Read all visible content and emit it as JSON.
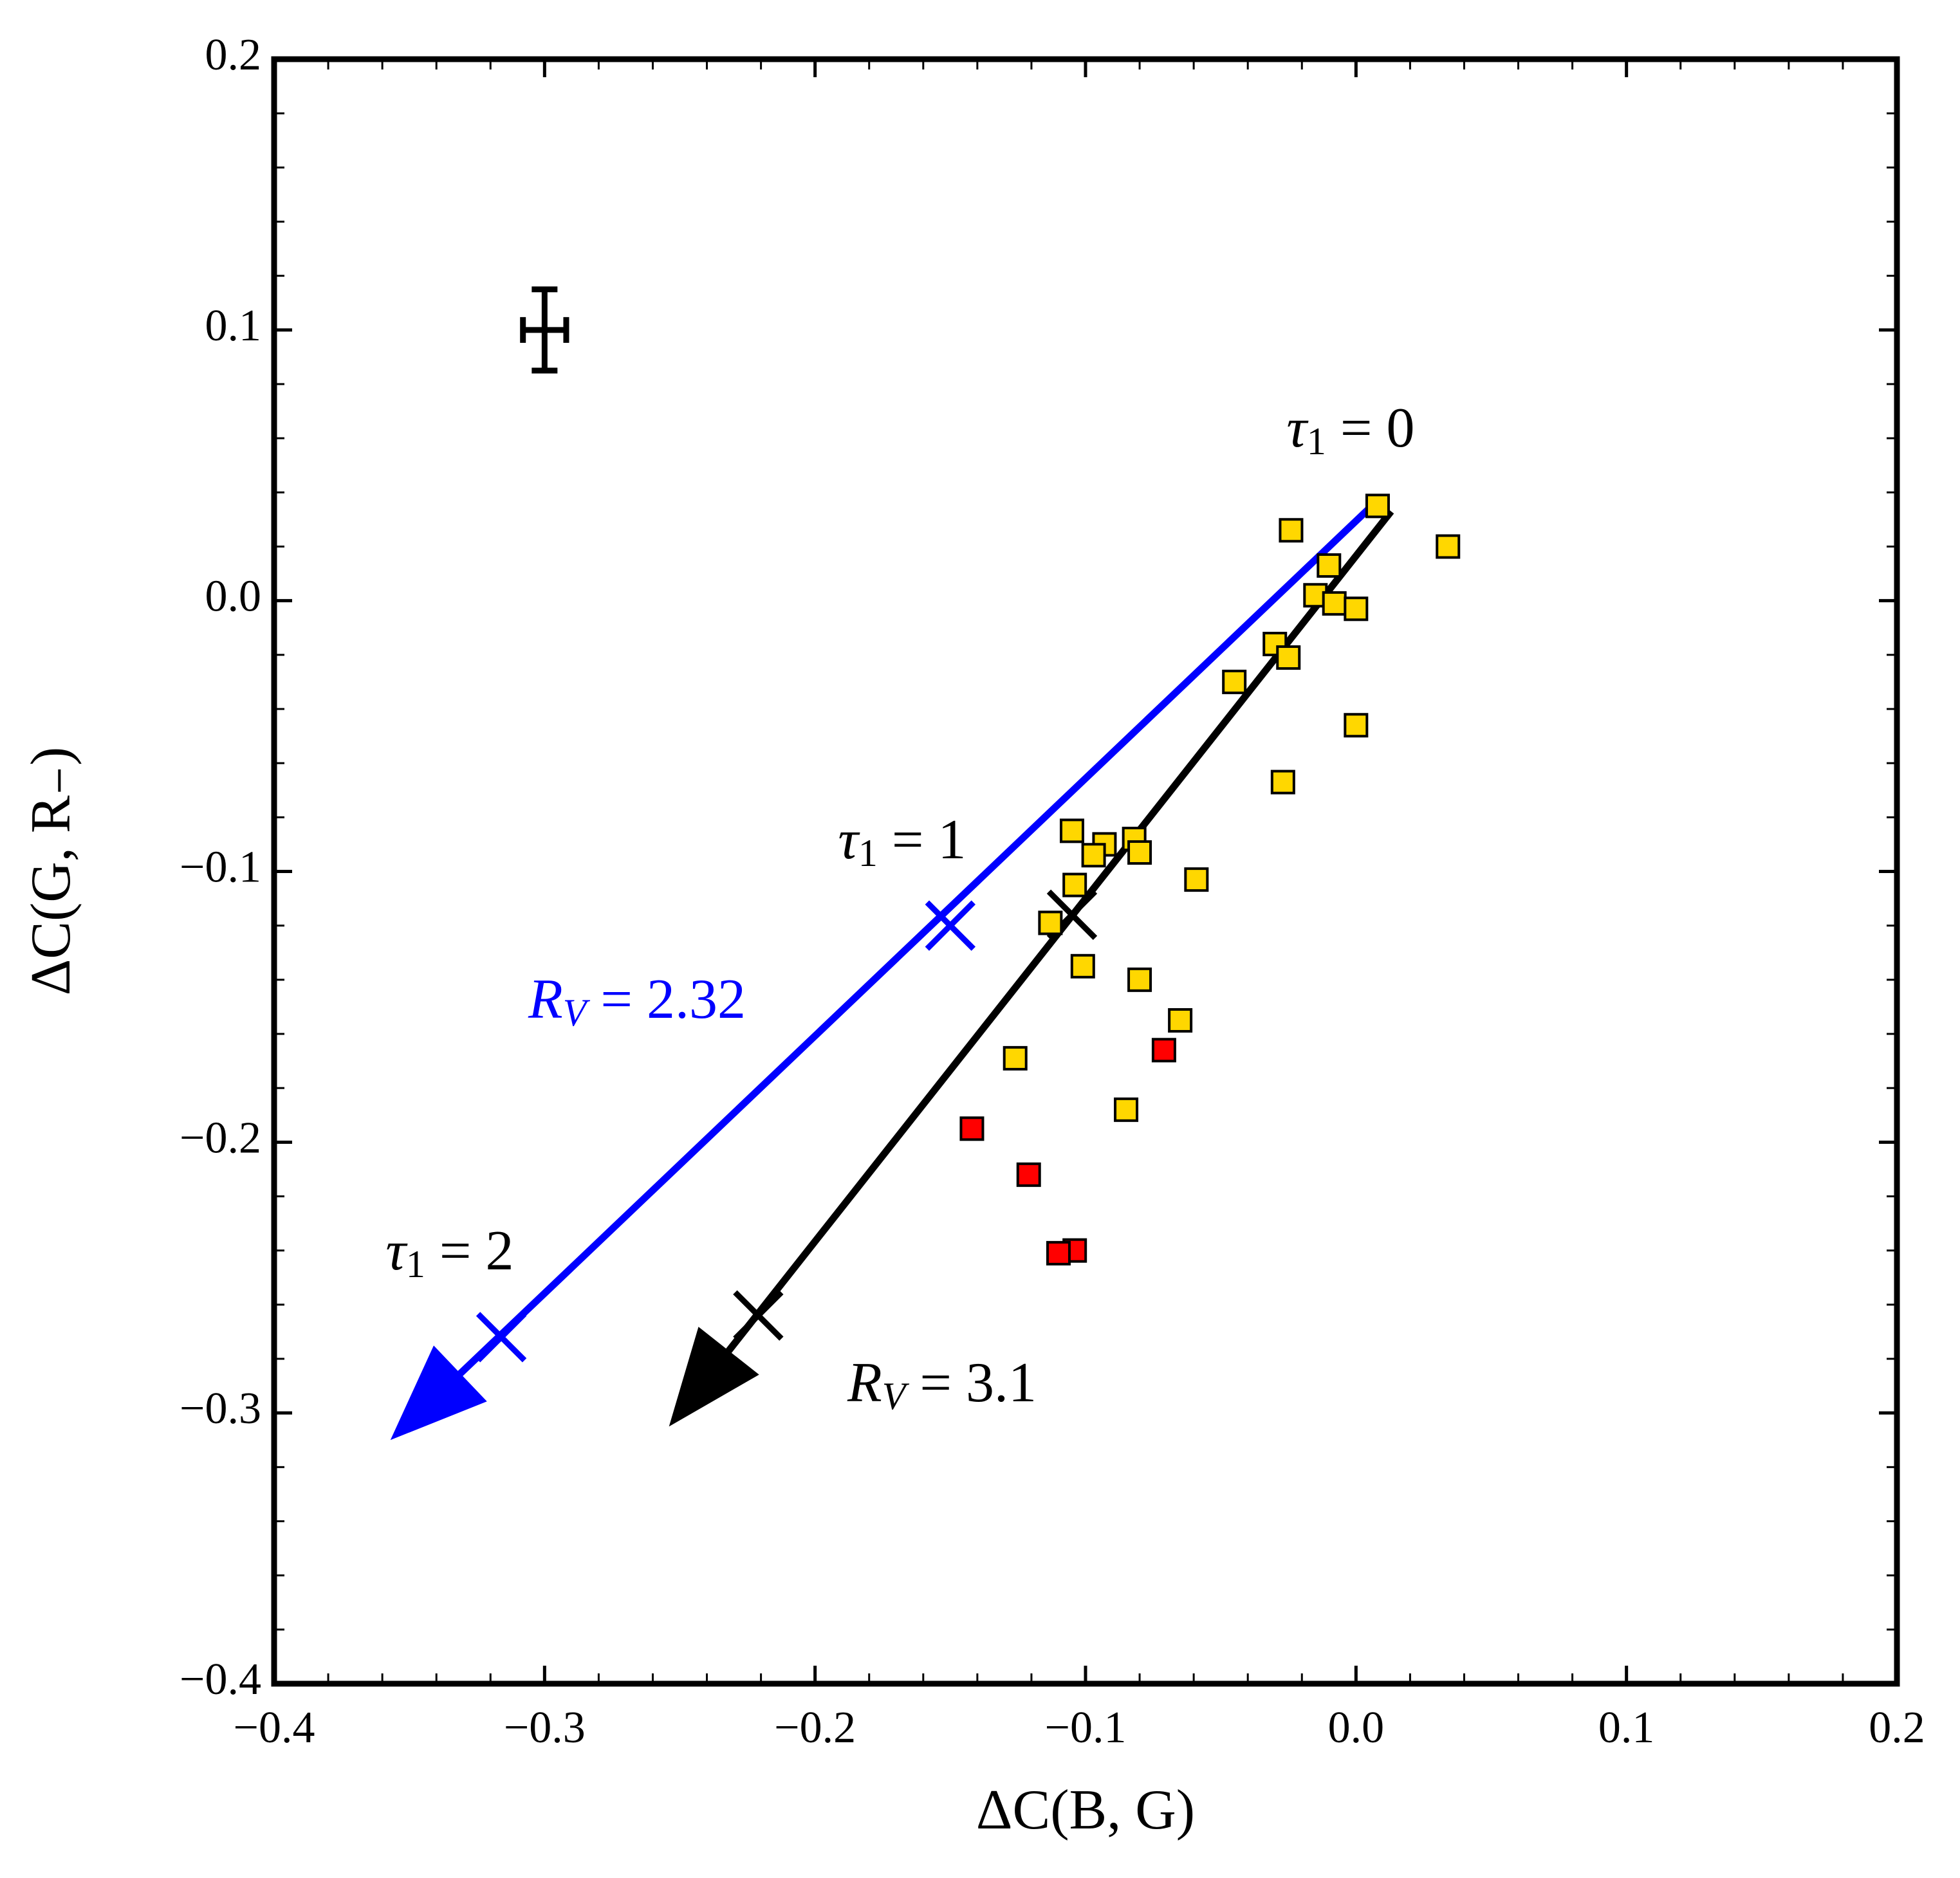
{
  "chart_data": {
    "type": "scatter",
    "xlabel": "ΔC(B, G)",
    "ylabel": "ΔC(G, R₋)",
    "xlim": [
      -0.4,
      0.2
    ],
    "ylim": [
      -0.4,
      0.2
    ],
    "xticks": [
      {
        "value": -0.4,
        "label": "−0.4"
      },
      {
        "value": -0.3,
        "label": "−0.3"
      },
      {
        "value": -0.2,
        "label": "−0.2"
      },
      {
        "value": -0.1,
        "label": "−0.1"
      },
      {
        "value": 0,
        "label": "0.0"
      },
      0.1,
      0.2
    ],
    "yticks": [
      {
        "value": -0.4,
        "label": "−0.4"
      },
      {
        "value": -0.3,
        "label": "−0.3"
      },
      {
        "value": -0.2,
        "label": "−0.2"
      },
      {
        "value": -0.1,
        "label": "−0.1"
      },
      {
        "value": 0,
        "label": "0.0"
      },
      0.1,
      0.2
    ],
    "xminorticks": [
      -0.38,
      -0.36,
      -0.34,
      -0.32,
      -0.28,
      -0.26,
      -0.24,
      -0.22,
      -0.18,
      -0.16,
      -0.14,
      -0.12,
      -0.08,
      -0.06,
      -0.04,
      -0.02,
      0.02,
      0.04,
      0.06,
      0.08,
      0.12,
      0.14,
      0.16,
      0.18
    ],
    "yminorticks": [
      -0.38,
      -0.36,
      -0.34,
      -0.32,
      -0.28,
      -0.26,
      -0.24,
      -0.22,
      -0.18,
      -0.16,
      -0.14,
      -0.12,
      -0.08,
      -0.06,
      -0.04,
      -0.02,
      0.02,
      0.04,
      0.06,
      0.08,
      0.12,
      0.14,
      0.16,
      0.18
    ],
    "series": [
      {
        "color": "#ffd700",
        "x": [
          0.008,
          -0.024,
          0.034,
          -0.01,
          -0.015,
          -0.008,
          0.0,
          -0.03,
          -0.025,
          -0.045,
          0.0,
          -0.027,
          -0.105,
          -0.093,
          -0.082,
          -0.08,
          -0.097,
          -0.104,
          -0.059,
          -0.113,
          -0.101,
          -0.08,
          -0.065,
          -0.126,
          -0.085
        ],
        "y": [
          0.035,
          0.026,
          0.02,
          0.013,
          0.002,
          -0.001,
          -0.003,
          -0.016,
          -0.021,
          -0.03,
          -0.046,
          -0.067,
          -0.085,
          -0.09,
          -0.088,
          -0.093,
          -0.094,
          -0.105,
          -0.103,
          -0.119,
          -0.135,
          -0.14,
          -0.155,
          -0.169,
          -0.188
        ]
      },
      {
        "color": "#ff0000",
        "x": [
          -0.071,
          -0.142,
          -0.121,
          -0.104,
          -0.11
        ],
        "y": [
          -0.166,
          -0.195,
          -0.212,
          -0.24,
          -0.241
        ]
      }
    ],
    "errorbar": {
      "x": -0.3,
      "y": 0.1,
      "xerr": 0.008,
      "yerr": 0.015,
      "color": "#000000"
    },
    "arrows": [
      {
        "color": "#0000ff",
        "x": [
          0.009,
          -0.357
        ],
        "y": [
          0.038,
          -0.31
        ],
        "marks_x": [
          -0.15,
          -0.316
        ],
        "marks_y": [
          -0.12,
          -0.272
        ]
      },
      {
        "color": "#000000",
        "x": [
          0.013,
          -0.254
        ],
        "y": [
          0.033,
          -0.305
        ],
        "marks_x": [
          -0.105,
          -0.221
        ],
        "marks_y": [
          -0.116,
          -0.264
        ]
      }
    ],
    "annotations": [
      {
        "text": "τ",
        "sub": "1",
        "tail": " = 0",
        "color": "#000000"
      },
      {
        "text": "τ",
        "sub": "1",
        "tail": " = 1",
        "color": "#000000"
      },
      {
        "text": "R",
        "sub": "V",
        "tail": " = 2.32",
        "color": "#0000ff"
      },
      {
        "text": "τ",
        "sub": "1",
        "tail": " = 2",
        "color": "#000000"
      },
      {
        "text": "R",
        "sub": "V",
        "tail": " = 3.1",
        "color": "#000000"
      }
    ]
  }
}
